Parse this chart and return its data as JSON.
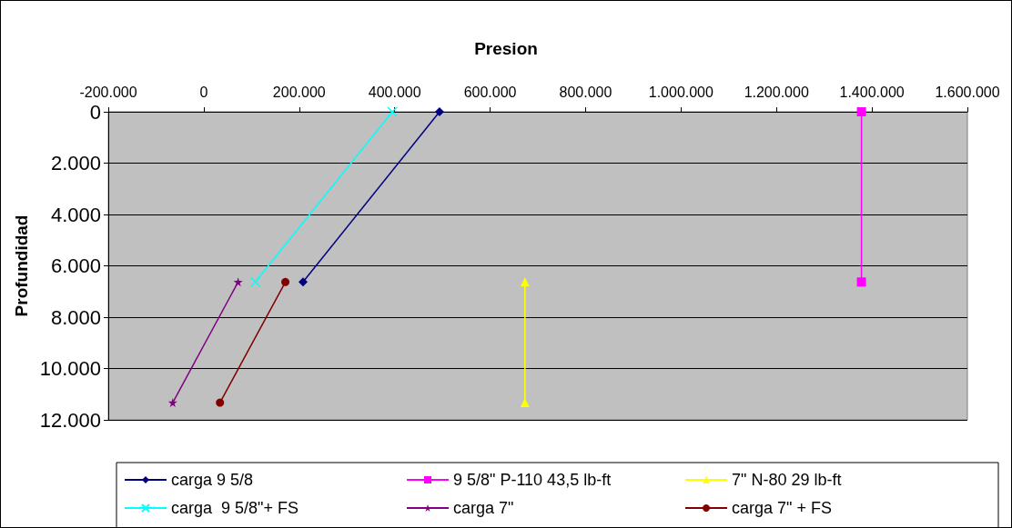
{
  "chart_data": {
    "type": "line",
    "title": "Presion",
    "ylabel": "Profundidad",
    "xlim": [
      -200000,
      1600000
    ],
    "xticks": [
      {
        "value": -200000,
        "label": "-200.000"
      },
      {
        "value": 0,
        "label": "0"
      },
      {
        "value": 200000,
        "label": "200.000"
      },
      {
        "value": 400000,
        "label": "400.000"
      },
      {
        "value": 600000,
        "label": "600.000"
      },
      {
        "value": 800000,
        "label": "800.000"
      },
      {
        "value": 1000000,
        "label": "1.000.000"
      },
      {
        "value": 1200000,
        "label": "1.200.000"
      },
      {
        "value": 1400000,
        "label": "1.400.000"
      },
      {
        "value": 1600000,
        "label": "1.600.000"
      }
    ],
    "ylim": [
      12000,
      0
    ],
    "yticks": [
      {
        "value": 0,
        "label": "0"
      },
      {
        "value": 2000,
        "label": "2.000"
      },
      {
        "value": 4000,
        "label": "4.000"
      },
      {
        "value": 6000,
        "label": "6.000"
      },
      {
        "value": 8000,
        "label": "8.000"
      },
      {
        "value": 10000,
        "label": "10.000"
      },
      {
        "value": 12000,
        "label": "12.000"
      }
    ],
    "grid": "y",
    "legend": "bottom",
    "series": [
      {
        "name": "carga 9 5/8",
        "color": "#000080",
        "marker": "diamond",
        "x": [
          494000,
          208000
        ],
        "values": [
          0,
          6630
        ]
      },
      {
        "name": "9 5/8\" P-110 43,5 lb-ft",
        "color": "#ff00ff",
        "marker": "square",
        "x": [
          1378000,
          1378000
        ],
        "values": [
          0,
          6630
        ]
      },
      {
        "name": "7\" N-80 29 lb-ft",
        "color": "#ffff00",
        "marker": "triangle",
        "x": [
          673000,
          673000
        ],
        "values": [
          6630,
          11330
        ]
      },
      {
        "name": "carga  9 5/8\"+ FS",
        "color": "#00ffff",
        "marker": "cross",
        "x": [
          395000,
          108000
        ],
        "values": [
          0,
          6630
        ]
      },
      {
        "name": "carga 7\"",
        "color": "#800080",
        "marker": "star",
        "x": [
          72000,
          -65000
        ],
        "values": [
          6630,
          11330
        ]
      },
      {
        "name": "carga 7\" + FS",
        "color": "#800000",
        "marker": "circle",
        "x": [
          171000,
          34000
        ],
        "values": [
          6630,
          11330
        ]
      }
    ]
  }
}
